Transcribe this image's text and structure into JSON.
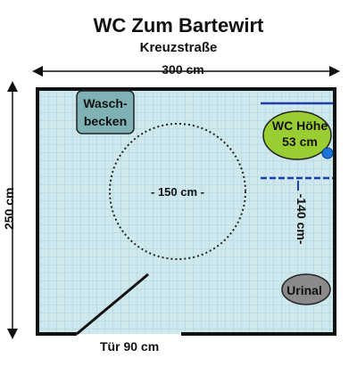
{
  "title": "WC Zum Bartewirt",
  "subtitle": "Kreuzstraße",
  "dimensions": {
    "width_label": "300 cm",
    "height_label": "250 cm",
    "door_label": "Tür 90 cm",
    "turning_circle_label": "- 150 cm -",
    "side_clearance_label": "-140 cm-"
  },
  "fixtures": {
    "sink": {
      "line1": "Wasch-",
      "line2": "becken"
    },
    "wc": {
      "line1": "WC Höhe",
      "line2": "53 cm"
    },
    "urinal": {
      "label": "Urinal"
    }
  },
  "colors": {
    "floor_tile": "#cfe8ee",
    "floor_grid": "#a9d2db",
    "walls": "#111111",
    "sink_fill": "#7fb2b4",
    "wc_fill": "#9acd32",
    "urinal_fill": "#8a8a8a",
    "grab_bar": "#1f3fa8",
    "dimension_marker": "#1f3fa8",
    "flush_button": "#1e73d8"
  }
}
